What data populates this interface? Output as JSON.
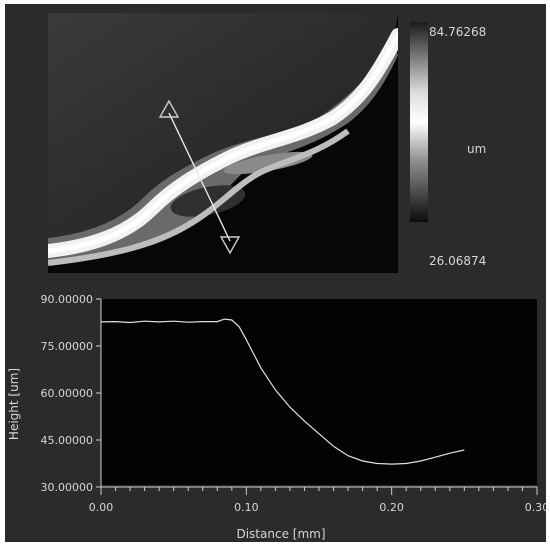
{
  "height_map": {
    "colorbar": {
      "max_label": "84.76268",
      "unit_label": "um",
      "min_label": "26.06874"
    },
    "profile_line": {
      "start_marker": "triangle-up",
      "end_marker": "triangle-down"
    }
  },
  "chart_data": {
    "type": "line",
    "title": "",
    "xlabel": "Distance [mm]",
    "ylabel": "Height [um]",
    "xlim": [
      0.0,
      0.3
    ],
    "ylim": [
      30.0,
      90.0
    ],
    "x_ticks": [
      "0.00",
      "0.10",
      "0.20",
      "0.30"
    ],
    "y_ticks": [
      "90.00000",
      "75.00000",
      "60.00000",
      "45.00000",
      "30.00000"
    ],
    "grid": false,
    "line_color": "#e0e0e0",
    "series": [
      {
        "x": [
          0.0,
          0.01,
          0.02,
          0.03,
          0.04,
          0.05,
          0.06,
          0.07,
          0.08,
          0.085,
          0.09,
          0.095,
          0.1,
          0.11,
          0.12,
          0.13,
          0.14,
          0.15,
          0.16,
          0.17,
          0.18,
          0.19,
          0.2,
          0.21,
          0.22,
          0.23,
          0.24,
          0.25
        ],
        "y": [
          82.7,
          82.8,
          82.5,
          82.9,
          82.7,
          82.9,
          82.6,
          82.8,
          82.8,
          83.6,
          83.3,
          81.2,
          77.0,
          68.0,
          61.0,
          55.5,
          51.0,
          47.0,
          43.0,
          40.0,
          38.3,
          37.5,
          37.3,
          37.5,
          38.3,
          39.5,
          40.8,
          41.8
        ]
      }
    ]
  }
}
